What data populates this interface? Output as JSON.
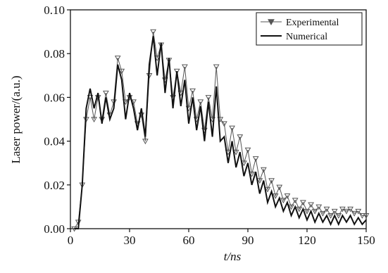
{
  "chart_data": {
    "type": "line",
    "xlabel": "t/ns",
    "ylabel": "Laser power/(a.u.)",
    "x": [
      2,
      4,
      6,
      8,
      10,
      12,
      14,
      16,
      18,
      20,
      22,
      24,
      26,
      28,
      30,
      32,
      34,
      36,
      38,
      40,
      42,
      44,
      46,
      48,
      50,
      52,
      54,
      56,
      58,
      60,
      62,
      64,
      66,
      68,
      70,
      72,
      74,
      76,
      78,
      80,
      82,
      84,
      86,
      88,
      90,
      92,
      94,
      96,
      98,
      100,
      102,
      104,
      106,
      108,
      110,
      112,
      114,
      116,
      118,
      120,
      122,
      124,
      126,
      128,
      130,
      132,
      134,
      136,
      138,
      140,
      142,
      144,
      146,
      148,
      150
    ],
    "series": [
      {
        "name": "Experimental",
        "color": "#555555",
        "marker": "triangle-down",
        "values": [
          0,
          0.003,
          0.02,
          0.05,
          0.06,
          0.05,
          0.06,
          0.05,
          0.062,
          0.052,
          0.058,
          0.078,
          0.072,
          0.058,
          0.06,
          0.058,
          0.048,
          0.052,
          0.04,
          0.07,
          0.09,
          0.078,
          0.084,
          0.068,
          0.077,
          0.06,
          0.072,
          0.062,
          0.074,
          0.055,
          0.063,
          0.05,
          0.058,
          0.045,
          0.06,
          0.05,
          0.074,
          0.05,
          0.048,
          0.035,
          0.046,
          0.035,
          0.042,
          0.03,
          0.036,
          0.025,
          0.032,
          0.022,
          0.027,
          0.018,
          0.022,
          0.015,
          0.019,
          0.013,
          0.015,
          0.01,
          0.013,
          0.009,
          0.012,
          0.008,
          0.011,
          0.008,
          0.01,
          0.007,
          0.009,
          0.006,
          0.008,
          0.006,
          0.009,
          0.008,
          0.009,
          0.007,
          0.008,
          0.006,
          0.006
        ]
      },
      {
        "name": "Numerical",
        "color": "#111111",
        "values": [
          0,
          0,
          0.02,
          0.055,
          0.064,
          0.055,
          0.062,
          0.048,
          0.06,
          0.05,
          0.055,
          0.075,
          0.068,
          0.05,
          0.062,
          0.055,
          0.045,
          0.055,
          0.042,
          0.075,
          0.088,
          0.07,
          0.085,
          0.062,
          0.078,
          0.055,
          0.072,
          0.056,
          0.068,
          0.048,
          0.06,
          0.045,
          0.056,
          0.04,
          0.058,
          0.042,
          0.065,
          0.04,
          0.042,
          0.03,
          0.04,
          0.028,
          0.035,
          0.024,
          0.03,
          0.02,
          0.026,
          0.016,
          0.022,
          0.012,
          0.017,
          0.01,
          0.014,
          0.008,
          0.012,
          0.006,
          0.01,
          0.005,
          0.009,
          0.004,
          0.008,
          0.003,
          0.007,
          0.003,
          0.006,
          0.002,
          0.006,
          0.002,
          0.006,
          0.003,
          0.006,
          0.002,
          0.005,
          0.002,
          0.004
        ]
      }
    ],
    "xlim": [
      0,
      150
    ],
    "xticks": [
      0,
      30,
      60,
      90,
      120,
      150
    ],
    "ylim": [
      0,
      0.1
    ],
    "yticks": [
      {
        "value": 0,
        "label": "0.00"
      },
      0.02,
      0.04,
      0.06,
      0.08,
      {
        "value": 0.1,
        "label": "0.10"
      }
    ],
    "legend": "upper right"
  }
}
